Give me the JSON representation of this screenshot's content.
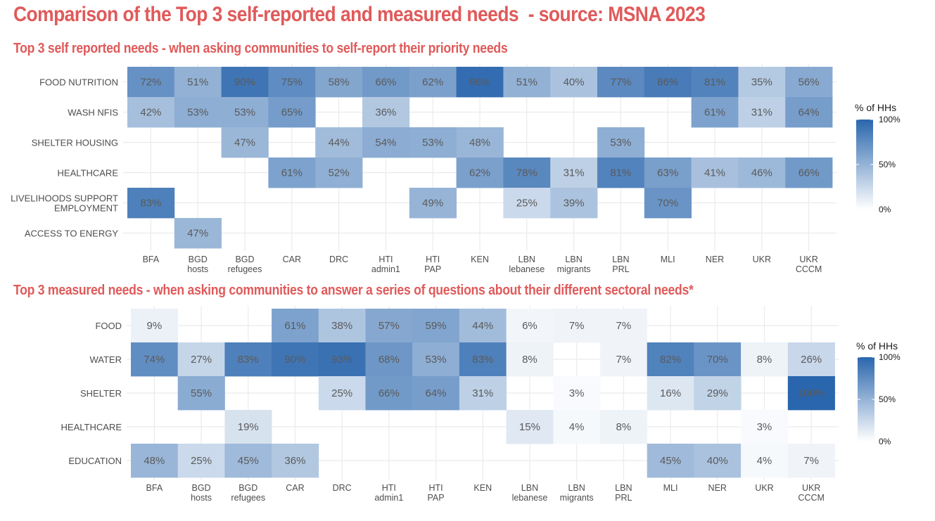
{
  "title": "Comparison of the Top 3 self-reported and measured needs  - source: MSNA 2023",
  "colors": {
    "title": "#e05a5a",
    "low": "#ffffff",
    "high": "#2a66ad"
  },
  "chart_data": [
    {
      "type": "heatmap",
      "title": "Top 3 self reported needs - when asking communities to self-report their priority needs",
      "x_categories": [
        [
          "BFA"
        ],
        [
          "BGD",
          "hosts"
        ],
        [
          "BGD",
          "refugees"
        ],
        [
          "CAR"
        ],
        [
          "DRC"
        ],
        [
          "HTI",
          "admin1"
        ],
        [
          "HTI",
          "PAP"
        ],
        [
          "KEN"
        ],
        [
          "LBN",
          "lebanese"
        ],
        [
          "LBN",
          "migrants"
        ],
        [
          "LBN",
          "PRL"
        ],
        [
          "MLI"
        ],
        [
          "NER"
        ],
        [
          "UKR"
        ],
        [
          "UKR",
          "CCCM"
        ]
      ],
      "y_categories": [
        [
          "FOOD NUTRITION"
        ],
        [
          "WASH NFIS"
        ],
        [
          "SHELTER HOUSING"
        ],
        [
          "HEALTHCARE"
        ],
        [
          "LIVELIHOODS SUPPORT",
          "EMPLOYMENT"
        ],
        [
          "ACCESS TO ENERGY"
        ]
      ],
      "values": [
        [
          72,
          51,
          90,
          75,
          58,
          66,
          62,
          96,
          51,
          40,
          77,
          86,
          81,
          35,
          56
        ],
        [
          42,
          53,
          53,
          65,
          null,
          36,
          null,
          null,
          null,
          null,
          null,
          null,
          61,
          31,
          64
        ],
        [
          null,
          null,
          47,
          null,
          44,
          54,
          53,
          48,
          null,
          null,
          53,
          null,
          null,
          null,
          null
        ],
        [
          null,
          null,
          null,
          61,
          52,
          null,
          null,
          62,
          78,
          31,
          81,
          63,
          41,
          46,
          66
        ],
        [
          83,
          null,
          null,
          null,
          null,
          null,
          49,
          null,
          25,
          39,
          null,
          70,
          null,
          null,
          null
        ],
        [
          null,
          47,
          null,
          null,
          null,
          null,
          null,
          null,
          null,
          null,
          null,
          null,
          null,
          null,
          null
        ]
      ],
      "value_suffix": "%",
      "legend": {
        "title": "% of HHs",
        "ticks": [
          "100%",
          "50%",
          "0%"
        ],
        "position": "right"
      },
      "range": [
        0,
        100
      ],
      "grid": true
    },
    {
      "type": "heatmap",
      "title": "Top 3 measured needs - when asking communities to answer a series of questions about their different sectoral needs*",
      "x_categories": [
        [
          "BFA"
        ],
        [
          "BGD",
          "hosts"
        ],
        [
          "BGD",
          "refugees"
        ],
        [
          "CAR"
        ],
        [
          "DRC"
        ],
        [
          "HTI",
          "admin1"
        ],
        [
          "HTI",
          "PAP"
        ],
        [
          "KEN"
        ],
        [
          "LBN",
          "lebanese"
        ],
        [
          "LBN",
          "migrants"
        ],
        [
          "LBN",
          "PRL"
        ],
        [
          "MLI"
        ],
        [
          "NER"
        ],
        [
          "UKR"
        ],
        [
          "UKR",
          "CCCM"
        ]
      ],
      "y_categories": [
        [
          "FOOD"
        ],
        [
          "WATER"
        ],
        [
          "SHELTER"
        ],
        [
          "HEALTHCARE"
        ],
        [
          "EDUCATION"
        ]
      ],
      "values": [
        [
          9,
          null,
          null,
          61,
          38,
          57,
          59,
          44,
          6,
          7,
          7,
          null,
          null,
          null,
          null
        ],
        [
          74,
          27,
          83,
          90,
          93,
          68,
          53,
          83,
          8,
          null,
          7,
          82,
          70,
          8,
          26
        ],
        [
          null,
          55,
          null,
          null,
          25,
          66,
          64,
          31,
          null,
          3,
          null,
          16,
          29,
          null,
          100
        ],
        [
          null,
          null,
          19,
          null,
          null,
          null,
          null,
          null,
          15,
          4,
          8,
          null,
          null,
          3,
          null
        ],
        [
          48,
          25,
          45,
          36,
          null,
          null,
          null,
          null,
          null,
          null,
          null,
          45,
          40,
          4,
          7
        ]
      ],
      "value_suffix": "%",
      "legend": {
        "title": "% of HHs",
        "ticks": [
          "100%",
          "50%",
          "0%"
        ],
        "position": "right"
      },
      "range": [
        0,
        100
      ],
      "grid": true
    }
  ]
}
